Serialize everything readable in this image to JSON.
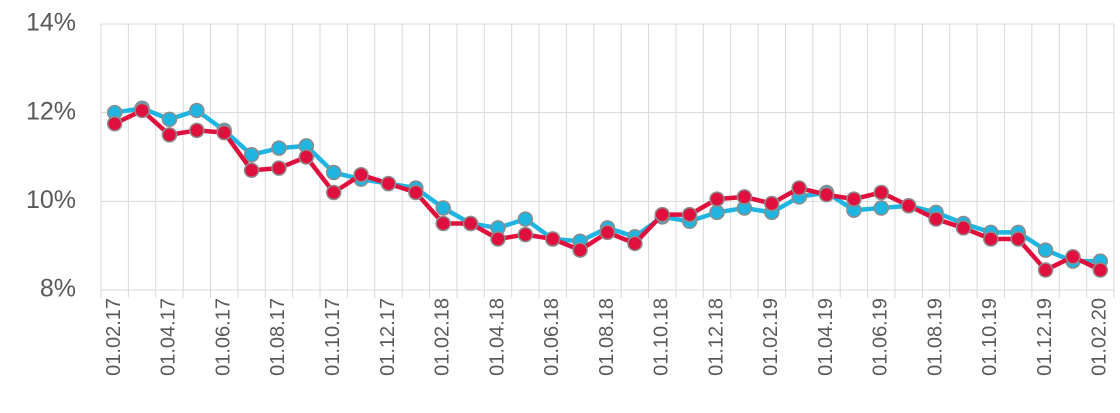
{
  "chart_data": {
    "type": "line",
    "categories": [
      "01.02.17",
      null,
      "01.04.17",
      null,
      "01.06.17",
      null,
      "01.08.17",
      null,
      "01.10.17",
      null,
      "01.12.17",
      null,
      "01.02.18",
      null,
      "01.04.18",
      null,
      "01.06.18",
      null,
      "01.08.18",
      null,
      "01.10.18",
      null,
      "01.12.18",
      null,
      "01.02.19",
      null,
      "01.04.19",
      null,
      "01.06.19",
      null,
      "01.08.19",
      null,
      "01.10.19",
      null,
      "01.12.19",
      null,
      "01.02.20"
    ],
    "series": [
      {
        "color": "#1fb5e0",
        "values": [
          12.0,
          12.1,
          11.85,
          12.05,
          11.6,
          11.05,
          11.2,
          11.25,
          10.65,
          10.5,
          10.4,
          10.3,
          9.85,
          9.5,
          9.4,
          9.6,
          9.15,
          9.1,
          9.4,
          9.2,
          9.65,
          9.55,
          9.75,
          9.85,
          9.75,
          10.1,
          10.2,
          9.8,
          9.85,
          9.9,
          9.75,
          9.5,
          9.3,
          9.3,
          8.9,
          8.65,
          8.65
        ]
      },
      {
        "color": "#e0103e",
        "values": [
          11.75,
          12.05,
          11.5,
          11.6,
          11.55,
          10.7,
          10.75,
          11.0,
          10.2,
          10.6,
          10.4,
          10.2,
          9.5,
          9.5,
          9.15,
          9.25,
          9.15,
          8.9,
          9.3,
          9.05,
          9.7,
          9.7,
          10.05,
          10.1,
          9.95,
          10.3,
          10.15,
          10.05,
          10.2,
          9.9,
          9.6,
          9.4,
          9.15,
          9.15,
          8.45,
          8.75,
          8.45
        ]
      }
    ],
    "ylim": [
      8,
      14
    ],
    "yticks": [
      {
        "value": 8,
        "label": "8%"
      },
      {
        "value": 10,
        "label": "10%"
      },
      {
        "value": 12,
        "label": "12%"
      },
      {
        "value": 14,
        "label": "14%"
      }
    ],
    "grid": true
  }
}
